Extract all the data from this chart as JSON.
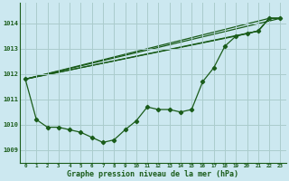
{
  "xlabel": "Graphe pression niveau de la mer (hPa)",
  "background_color": "#cce8f0",
  "grid_color": "#aacccc",
  "line_color": "#1a5c1a",
  "text_color": "#1a5c1a",
  "xlim": [
    -0.5,
    23.5
  ],
  "ylim": [
    1008.5,
    1014.8
  ],
  "yticks": [
    1009,
    1010,
    1011,
    1012,
    1013,
    1014
  ],
  "xticks": [
    0,
    1,
    2,
    3,
    4,
    5,
    6,
    7,
    8,
    9,
    10,
    11,
    12,
    13,
    14,
    15,
    16,
    17,
    18,
    19,
    20,
    21,
    22,
    23
  ],
  "series1": [
    1011.8,
    1010.2,
    1009.9,
    1009.9,
    1009.8,
    1009.7,
    1009.5,
    1009.3,
    1009.4,
    1009.8,
    1010.15,
    1010.7,
    1010.6,
    1010.6,
    1010.5,
    1010.6,
    1011.7,
    1012.25,
    1013.1,
    1013.5,
    1013.6,
    1013.7,
    1014.2,
    1014.2
  ],
  "trend1_x": [
    0,
    23
  ],
  "trend1_y": [
    1011.8,
    1014.2
  ],
  "trend2_x": [
    0,
    22,
    23
  ],
  "trend2_y": [
    1011.8,
    1014.2,
    1014.2
  ],
  "trend3_x": [
    0,
    21,
    22,
    23
  ],
  "trend3_y": [
    1011.8,
    1013.7,
    1014.2,
    1014.2
  ],
  "trend4_x": [
    0,
    19,
    20,
    21,
    22,
    23
  ],
  "trend4_y": [
    1011.8,
    1013.5,
    1013.6,
    1013.7,
    1014.2,
    1014.2
  ]
}
